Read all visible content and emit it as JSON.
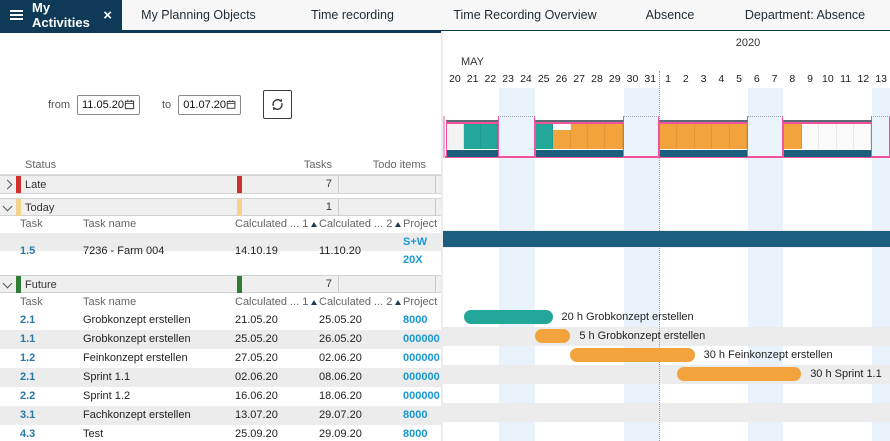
{
  "tab_bar": {
    "active_tab": "My Activities",
    "tabs": [
      "My Planning Objects",
      "Time recording",
      "Time Recording Overview",
      "Absence",
      "Department: Absence"
    ]
  },
  "filter": {
    "from_label": "from",
    "from_value": "11.05.20",
    "to_label": "to",
    "to_value": "01.07.20"
  },
  "table": {
    "columns": {
      "status": "Status",
      "tasks": "Tasks",
      "todo": "Todo items"
    },
    "task_columns": {
      "task": "Task",
      "name": "Task name",
      "calc1": "Calculated ... 1",
      "calc2": "Calculated ... 2",
      "project": "Project"
    },
    "groups": {
      "late": {
        "label": "Late",
        "tasks": "7",
        "color": "#d42f2f",
        "expanded": false
      },
      "today": {
        "label": "Today",
        "tasks": "1",
        "color": "#f2d490",
        "expanded": true
      },
      "future": {
        "label": "Future",
        "tasks": "7",
        "color": "#2e7d36",
        "expanded": true
      }
    },
    "today_rows": [
      {
        "task": "1.5",
        "name": "7236 - Farm 004",
        "calc1": "14.10.19",
        "calc2": "11.10.20",
        "project": "S+W 20X"
      }
    ],
    "future_rows": [
      {
        "task": "2.1",
        "name": "Grobkonzept erstellen",
        "calc1": "21.05.20",
        "calc2": "25.05.20",
        "project": "8000"
      },
      {
        "task": "1.1",
        "name": "Grobkonzept erstellen",
        "calc1": "25.05.20",
        "calc2": "26.05.20",
        "project": "000000"
      },
      {
        "task": "1.2",
        "name": "Feinkonzept erstellen",
        "calc1": "27.05.20",
        "calc2": "02.06.20",
        "project": "000000"
      },
      {
        "task": "2.1",
        "name": "Sprint 1.1",
        "calc1": "02.06.20",
        "calc2": "08.06.20",
        "project": "000000"
      },
      {
        "task": "2.2",
        "name": "Sprint 1.2",
        "calc1": "16.06.20",
        "calc2": "18.06.20",
        "project": "000000"
      },
      {
        "task": "3.1",
        "name": "Fachkonzept erstellen",
        "calc1": "13.07.20",
        "calc2": "29.07.20",
        "project": "8000"
      },
      {
        "task": "4.3",
        "name": "Test",
        "calc1": "25.09.20",
        "calc2": "29.09.20",
        "project": "8000"
      }
    ]
  },
  "gantt": {
    "year": "2020",
    "month": "MAY",
    "days": [
      "20",
      "21",
      "22",
      "23",
      "24",
      "25",
      "26",
      "27",
      "28",
      "29",
      "30",
      "31",
      "1",
      "2",
      "3",
      "4",
      "5",
      "6",
      "7",
      "8",
      "9",
      "10",
      "11",
      "12",
      "13"
    ],
    "weekend_days": [
      3,
      4,
      10,
      11,
      17,
      18,
      24
    ],
    "month_separator_day": 12,
    "colors": {
      "teal": "#23a79a",
      "orange": "#f2a33c",
      "dark_blue": "#1c5e7e",
      "pink": "#f2539f",
      "weekend": "#e9f2fb"
    },
    "summary_segments": [
      {
        "start": 0,
        "count": 3,
        "fills": [
          "muted",
          "teal",
          "teal"
        ]
      },
      {
        "start": 5,
        "count": 5,
        "fills": [
          "teal",
          "orange_notch",
          "orange",
          "orange",
          "orange"
        ]
      },
      {
        "start": 12,
        "count": 5,
        "fills": [
          "orange",
          "orange",
          "orange",
          "orange",
          "orange"
        ]
      },
      {
        "start": 19,
        "count": 5,
        "fills": [
          "orange",
          "blank",
          "blank",
          "blank",
          "blank"
        ]
      }
    ],
    "weekend_band_boxes": [
      [
        3,
        4
      ],
      [
        10,
        11
      ],
      [
        17,
        18
      ],
      [
        24,
        24
      ]
    ],
    "bars": [
      {
        "row": "today-0",
        "start": 0,
        "count": 25,
        "color": "dark_blue",
        "label": "",
        "full": true
      },
      {
        "row": "future-0",
        "start": 1,
        "count": 5,
        "color": "teal",
        "label": "20 h Grobkonzept erstellen"
      },
      {
        "row": "future-1",
        "start": 5,
        "count": 2,
        "color": "orange",
        "label": "5 h Grobkonzept erstellen"
      },
      {
        "row": "future-2",
        "start": 7,
        "count": 7,
        "color": "orange",
        "label": "30 h Feinkonzept erstellen"
      },
      {
        "row": "future-3",
        "start": 13,
        "count": 7,
        "color": "orange",
        "label": "30 h Sprint 1.1"
      }
    ]
  }
}
